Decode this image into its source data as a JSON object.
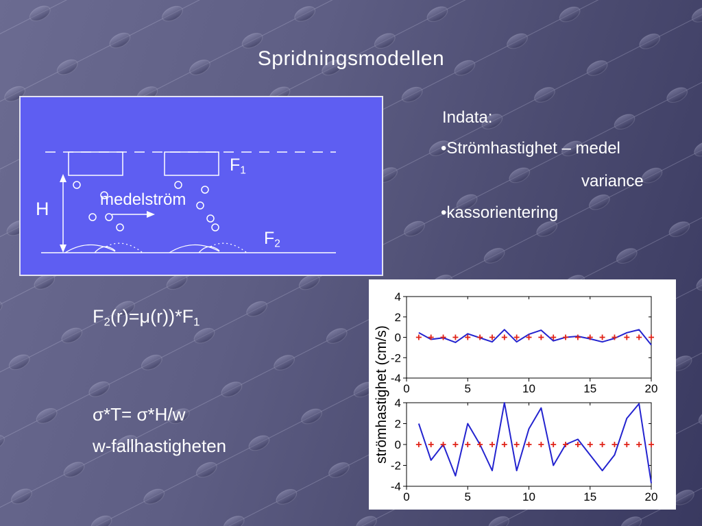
{
  "title": "Spridningsmodellen",
  "diagram": {
    "f1_base": "F",
    "f1_sub": "1",
    "f2_base": "F",
    "f2_sub": "2",
    "h_label": "H",
    "medelstrom_label": "medelström"
  },
  "indata": {
    "heading": "Indata:",
    "bullet1": "•Strömhastighet – medel",
    "line2": "variance",
    "bullet2": "•kassorientering"
  },
  "formulas": {
    "f2_base": "F",
    "f2_sub": "2",
    "f2_mid": "(r)=μ(r))*F",
    "f2_sub2": "1",
    "sigma": "σ*T= σ*H/w",
    "wfall": "w-fallhastigheten"
  },
  "charts_shared": {
    "ylabel": "strömhastighet (cm/s)"
  },
  "colors": {
    "line_blue": "#2323cf",
    "marker_red": "#e02318",
    "box_blue": "#5e5ef2",
    "axis_black": "#000000"
  },
  "chart_data": [
    {
      "type": "line",
      "title": "",
      "xlabel": "",
      "ylabel": "strömhastighet (cm/s)",
      "xlim": [
        0,
        20
      ],
      "ylim": [
        -4,
        4
      ],
      "xticks": [
        0,
        5,
        10,
        15,
        20
      ],
      "yticks": [
        -4,
        -2,
        0,
        2,
        4
      ],
      "grid": false,
      "legend": null,
      "x": [
        1,
        2,
        3,
        4,
        5,
        6,
        7,
        8,
        9,
        10,
        11,
        12,
        13,
        14,
        15,
        16,
        17,
        18,
        19,
        20
      ],
      "series": [
        {
          "name": "strömhastighet-signal",
          "color": "#2323cf",
          "values": [
            0.45,
            -0.2,
            -0.05,
            -0.5,
            0.35,
            -0.05,
            -0.45,
            0.75,
            -0.45,
            0.3,
            0.7,
            -0.35,
            0,
            0.1,
            -0.15,
            -0.45,
            -0.1,
            0.45,
            0.75,
            -0.75
          ]
        },
        {
          "name": "medelvärde-markers",
          "color": "#e02318",
          "marker": "+",
          "values": [
            0,
            0,
            0,
            0,
            0,
            0,
            0,
            0,
            0,
            0,
            0,
            0,
            0,
            0,
            0,
            0,
            0,
            0,
            0,
            0
          ]
        }
      ]
    },
    {
      "type": "line",
      "title": "",
      "xlabel": "",
      "ylabel": "strömhastighet (cm/s)",
      "xlim": [
        0,
        20
      ],
      "ylim": [
        -4,
        4
      ],
      "xticks": [
        0,
        5,
        10,
        15,
        20
      ],
      "yticks": [
        -4,
        -2,
        0,
        2,
        4
      ],
      "grid": false,
      "legend": null,
      "x": [
        1,
        2,
        3,
        4,
        5,
        6,
        7,
        8,
        9,
        10,
        11,
        12,
        13,
        14,
        15,
        16,
        17,
        18,
        19,
        20
      ],
      "series": [
        {
          "name": "strömhastighet-signal",
          "color": "#2323cf",
          "values": [
            2,
            -1.5,
            0,
            -3,
            2,
            0,
            -2.5,
            4,
            -2.5,
            1.5,
            3.5,
            -2,
            0,
            0.5,
            -1,
            -2.5,
            -1,
            2.5,
            3.9,
            -3.7
          ]
        },
        {
          "name": "medelvärde-markers",
          "color": "#e02318",
          "marker": "+",
          "values": [
            0,
            0,
            0,
            0,
            0,
            0,
            0,
            0,
            0,
            0,
            0,
            0,
            0,
            0,
            0,
            0,
            0,
            0,
            0,
            0
          ]
        }
      ]
    }
  ]
}
